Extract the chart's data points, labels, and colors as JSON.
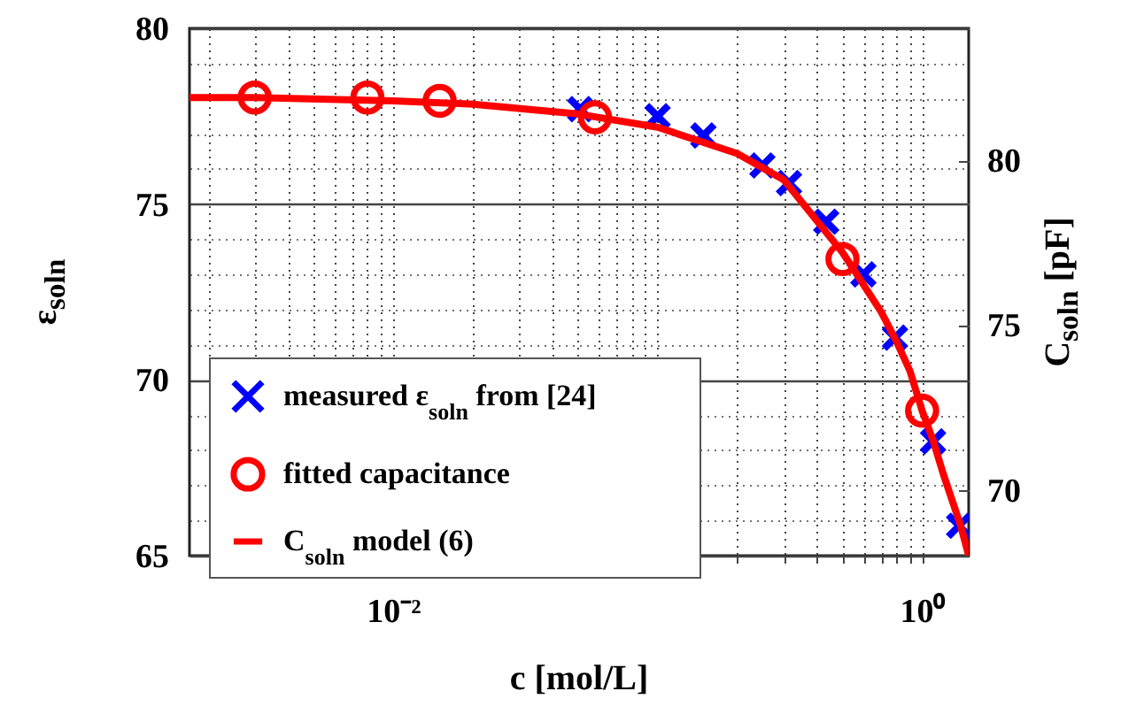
{
  "chart_data": {
    "type": "scatter",
    "xlabel": "c [mol/L]",
    "ylabel": "ε$_{soln}$",
    "y2label": "C$_{soln}$ [pF]",
    "log": "x",
    "xlim": [
      0.0017,
      1.5
    ],
    "xticks": [
      {
        "value": 0.002,
        "label": null
      },
      {
        "value": 0.003,
        "label": null
      },
      {
        "value": 0.004,
        "label": null
      },
      {
        "value": 0.005,
        "label": null
      },
      {
        "value": 0.006,
        "label": null
      },
      {
        "value": 0.007,
        "label": null
      },
      {
        "value": 0.008,
        "label": null
      },
      {
        "value": 0.009,
        "label": null
      },
      {
        "value": 0.01,
        "label": "10⁻²"
      },
      {
        "value": 0.02,
        "label": null
      },
      {
        "value": 0.03,
        "label": null
      },
      {
        "value": 0.04,
        "label": null
      },
      {
        "value": 0.05,
        "label": null
      },
      {
        "value": 0.06,
        "label": null
      },
      {
        "value": 0.07,
        "label": null
      },
      {
        "value": 0.08,
        "label": null
      },
      {
        "value": 0.09,
        "label": null
      },
      {
        "value": 0.1,
        "label": null
      },
      {
        "value": 0.2,
        "label": null
      },
      {
        "value": 0.3,
        "label": null
      },
      {
        "value": 0.4,
        "label": null
      },
      {
        "value": 0.5,
        "label": null
      },
      {
        "value": 0.6,
        "label": null
      },
      {
        "value": 0.7,
        "label": null
      },
      {
        "value": 0.8,
        "label": null
      },
      {
        "value": 0.9,
        "label": null
      },
      {
        "value": 1,
        "label": "10⁰"
      }
    ],
    "ylim": [
      65,
      80
    ],
    "yticks": [
      65,
      {
        "value": 66,
        "label": null
      },
      {
        "value": 67,
        "label": null
      },
      {
        "value": 68,
        "label": null
      },
      {
        "value": 69,
        "label": null
      },
      70,
      {
        "value": 71,
        "label": null
      },
      {
        "value": 72,
        "label": null
      },
      {
        "value": 73,
        "label": null
      },
      {
        "value": 74,
        "label": null
      },
      75,
      {
        "value": 76,
        "label": null
      },
      {
        "value": 77,
        "label": null
      },
      {
        "value": 78,
        "label": null
      },
      {
        "value": 79,
        "label": null
      },
      80
    ],
    "y2lim": [
      68,
      84
    ],
    "y2ticks": [
      70,
      75,
      80
    ],
    "grid": true,
    "legend": "bottom left",
    "series": [
      {
        "name": "measured ε$_{soln}$ from [24]",
        "marker": "cross",
        "color": "#0000ff",
        "x": [
          0.051,
          0.1,
          0.149,
          0.249,
          0.314,
          0.434,
          0.6,
          0.79,
          1.1,
          1.38
        ],
        "values": [
          77.7,
          77.5,
          76.95,
          76.1,
          75.6,
          74.5,
          73.0,
          71.2,
          68.25,
          65.85
        ]
      },
      {
        "name": "fitted capacitance",
        "marker": "circle",
        "color": "#ff0000",
        "axis": "y2",
        "x": [
          0.003,
          0.008,
          0.015,
          0.058,
          0.5,
          1.0
        ],
        "values": [
          81.9,
          81.9,
          81.8,
          81.3,
          77.0,
          72.4
        ]
      },
      {
        "name": "C$_{soln}$ model (6)",
        "type": "line",
        "marker": "none",
        "line_style": "solid",
        "color": "#ff0000",
        "axis": "y2",
        "x": [
          0.0017,
          0.003,
          0.01,
          0.02,
          0.05,
          0.1,
          0.2,
          0.3,
          0.5,
          0.7,
          0.8,
          0.9,
          1.0,
          1.1,
          1.2,
          1.4,
          1.5
        ],
        "values": [
          81.9,
          81.9,
          81.8,
          81.7,
          81.4,
          81.0,
          80.2,
          79.4,
          77.2,
          75.4,
          74.5,
          73.6,
          72.4,
          71.5,
          70.5,
          68.9,
          68.0
        ]
      }
    ]
  }
}
